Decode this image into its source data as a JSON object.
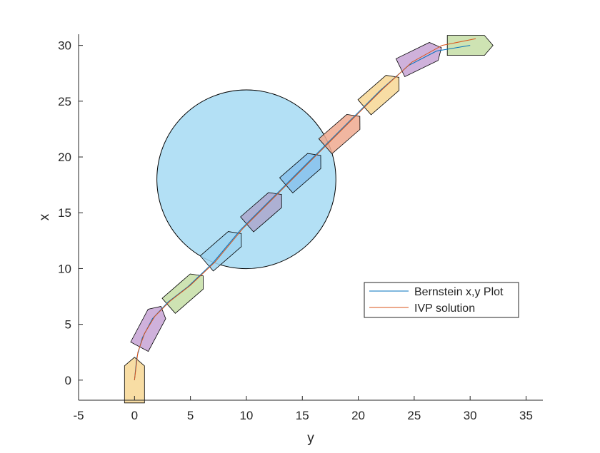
{
  "chart_data": {
    "type": "line",
    "title": "",
    "xlabel": "y",
    "ylabel": "x",
    "xlim": [
      -5,
      36.5
    ],
    "ylim": [
      -1.8,
      31
    ],
    "xticks": [
      -5,
      0,
      5,
      10,
      15,
      20,
      25,
      30,
      35
    ],
    "yticks": [
      0,
      5,
      10,
      15,
      20,
      25,
      30
    ],
    "grid": false,
    "legend_position": "right-center",
    "series": [
      {
        "name": "Bernstein x,y Plot",
        "color": "#0072BD",
        "points": [
          [
            0,
            0
          ],
          [
            0.2,
            2
          ],
          [
            0.7,
            3.8
          ],
          [
            1.6,
            5.5
          ],
          [
            3,
            7
          ],
          [
            4.8,
            8.4
          ],
          [
            7,
            10.5
          ],
          [
            9.5,
            13.5
          ],
          [
            12,
            16
          ],
          [
            14.5,
            18.5
          ],
          [
            17,
            21
          ],
          [
            19.5,
            23.5
          ],
          [
            22,
            26
          ],
          [
            24.5,
            28.2
          ],
          [
            27,
            29.5
          ],
          [
            30,
            30
          ]
        ]
      },
      {
        "name": "IVP solution",
        "color": "#D95319",
        "points": [
          [
            0,
            0
          ],
          [
            0.3,
            2.5
          ],
          [
            0.9,
            4.2
          ],
          [
            1.8,
            5.7
          ],
          [
            3.2,
            7.1
          ],
          [
            5,
            8.5
          ],
          [
            7.2,
            10.6
          ],
          [
            9.7,
            13.6
          ],
          [
            12.2,
            16.1
          ],
          [
            14.7,
            18.6
          ],
          [
            17.2,
            21.1
          ],
          [
            19.7,
            23.6
          ],
          [
            22.2,
            26.1
          ],
          [
            24.8,
            28.5
          ],
          [
            27.5,
            30
          ],
          [
            30.5,
            30.6
          ]
        ]
      }
    ],
    "obstacle": {
      "shape": "circle",
      "center": [
        10,
        18
      ],
      "radius": 8,
      "fill": "#B3E0F5",
      "stroke": "#000000"
    },
    "boats": [
      {
        "y": 0,
        "x": 0,
        "heading_deg": 90,
        "color": "#F7D794"
      },
      {
        "y": 1.4,
        "x": 4.8,
        "heading_deg": 62,
        "color": "#C7A3D5"
      },
      {
        "y": 4.6,
        "x": 8.0,
        "heading_deg": 41,
        "color": "#C6DEA6"
      },
      {
        "y": 8.0,
        "x": 11.8,
        "heading_deg": 41,
        "color": "#9DD3F0"
      },
      {
        "y": 11.6,
        "x": 15.3,
        "heading_deg": 41,
        "color": "#ABA7CC"
      },
      {
        "y": 15.1,
        "x": 18.8,
        "heading_deg": 41,
        "color": "#87C1EC"
      },
      {
        "y": 18.6,
        "x": 22.3,
        "heading_deg": 41,
        "color": "#EFA98F"
      },
      {
        "y": 22.1,
        "x": 25.8,
        "heading_deg": 41,
        "color": "#F7D794"
      },
      {
        "y": 25.6,
        "x": 28.9,
        "heading_deg": 26,
        "color": "#C7A3D5"
      },
      {
        "y": 30.0,
        "x": 30.0,
        "heading_deg": 0,
        "color": "#C6DEA6"
      }
    ]
  }
}
